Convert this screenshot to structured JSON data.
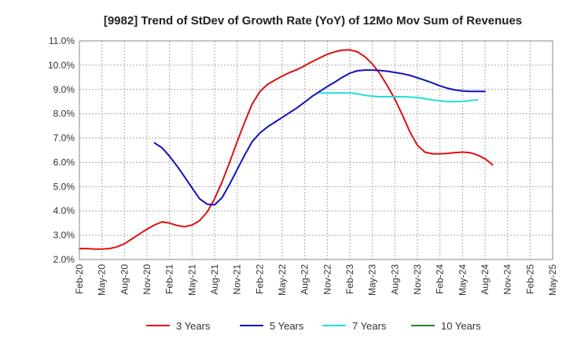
{
  "chart_data": {
    "type": "line",
    "title": "[9982]  Trend of StDev of Growth Rate (YoY) of 12Mo Mov Sum of Revenues",
    "xlabel": "",
    "ylabel": "",
    "ylim": [
      2.0,
      11.0
    ],
    "y_ticks": [
      "2.0%",
      "3.0%",
      "4.0%",
      "5.0%",
      "6.0%",
      "7.0%",
      "8.0%",
      "9.0%",
      "10.0%",
      "11.0%"
    ],
    "x_ticks": [
      "Feb-20",
      "May-20",
      "Aug-20",
      "Nov-20",
      "Feb-21",
      "May-21",
      "Aug-21",
      "Nov-21",
      "Feb-22",
      "May-22",
      "Aug-22",
      "Nov-22",
      "Feb-23",
      "May-23",
      "Aug-23",
      "Nov-23",
      "Feb-24",
      "May-24",
      "Aug-24",
      "Nov-24",
      "Feb-25",
      "May-25"
    ],
    "grid": true,
    "legend_position": "bottom",
    "series": [
      {
        "name": "3 Years",
        "color": "#dd1111",
        "points": [
          [
            0,
            2.45
          ],
          [
            1,
            2.45
          ],
          [
            2,
            2.43
          ],
          [
            3,
            2.43
          ],
          [
            4,
            2.45
          ],
          [
            5,
            2.52
          ],
          [
            6,
            2.65
          ],
          [
            7,
            2.85
          ],
          [
            8,
            3.05
          ],
          [
            9,
            3.25
          ],
          [
            10,
            3.42
          ],
          [
            11,
            3.55
          ],
          [
            12,
            3.5
          ],
          [
            13,
            3.4
          ],
          [
            14,
            3.35
          ],
          [
            15,
            3.42
          ],
          [
            16,
            3.6
          ],
          [
            17,
            3.95
          ],
          [
            18,
            4.5
          ],
          [
            19,
            5.2
          ],
          [
            20,
            6.0
          ],
          [
            21,
            6.85
          ],
          [
            22,
            7.65
          ],
          [
            23,
            8.4
          ],
          [
            24,
            8.9
          ],
          [
            25,
            9.2
          ],
          [
            26,
            9.38
          ],
          [
            27,
            9.55
          ],
          [
            28,
            9.7
          ],
          [
            29,
            9.82
          ],
          [
            30,
            9.98
          ],
          [
            31,
            10.15
          ],
          [
            32,
            10.3
          ],
          [
            33,
            10.45
          ],
          [
            34,
            10.55
          ],
          [
            35,
            10.62
          ],
          [
            36,
            10.63
          ],
          [
            37,
            10.55
          ],
          [
            38,
            10.35
          ],
          [
            39,
            10.05
          ],
          [
            40,
            9.65
          ],
          [
            41,
            9.15
          ],
          [
            42,
            8.6
          ],
          [
            43,
            7.95
          ],
          [
            44,
            7.25
          ],
          [
            45,
            6.7
          ],
          [
            46,
            6.42
          ],
          [
            47,
            6.35
          ],
          [
            48,
            6.35
          ],
          [
            49,
            6.37
          ],
          [
            50,
            6.4
          ],
          [
            51,
            6.42
          ],
          [
            52,
            6.4
          ],
          [
            53,
            6.3
          ],
          [
            54,
            6.15
          ],
          [
            55,
            5.9
          ]
        ]
      },
      {
        "name": "5 Years",
        "color": "#1111bb",
        "points": [
          [
            10,
            6.8
          ],
          [
            11,
            6.6
          ],
          [
            12,
            6.25
          ],
          [
            13,
            5.85
          ],
          [
            14,
            5.4
          ],
          [
            15,
            4.95
          ],
          [
            16,
            4.5
          ],
          [
            17,
            4.28
          ],
          [
            18,
            4.25
          ],
          [
            19,
            4.55
          ],
          [
            20,
            5.1
          ],
          [
            21,
            5.7
          ],
          [
            22,
            6.3
          ],
          [
            23,
            6.85
          ],
          [
            24,
            7.2
          ],
          [
            25,
            7.45
          ],
          [
            26,
            7.65
          ],
          [
            27,
            7.85
          ],
          [
            28,
            8.05
          ],
          [
            29,
            8.25
          ],
          [
            30,
            8.48
          ],
          [
            31,
            8.72
          ],
          [
            32,
            8.92
          ],
          [
            33,
            9.12
          ],
          [
            34,
            9.3
          ],
          [
            35,
            9.5
          ],
          [
            36,
            9.67
          ],
          [
            37,
            9.77
          ],
          [
            38,
            9.8
          ],
          [
            39,
            9.8
          ],
          [
            40,
            9.78
          ],
          [
            41,
            9.75
          ],
          [
            42,
            9.7
          ],
          [
            43,
            9.65
          ],
          [
            44,
            9.58
          ],
          [
            45,
            9.48
          ],
          [
            46,
            9.38
          ],
          [
            47,
            9.27
          ],
          [
            48,
            9.15
          ],
          [
            49,
            9.05
          ],
          [
            50,
            8.98
          ],
          [
            51,
            8.94
          ],
          [
            52,
            8.92
          ],
          [
            53,
            8.92
          ],
          [
            54,
            8.92
          ]
        ]
      },
      {
        "name": "7 Years",
        "color": "#22dddd",
        "points": [
          [
            32,
            8.85
          ],
          [
            33,
            8.85
          ],
          [
            34,
            8.86
          ],
          [
            35,
            8.86
          ],
          [
            36,
            8.86
          ],
          [
            37,
            8.82
          ],
          [
            38,
            8.76
          ],
          [
            39,
            8.72
          ],
          [
            40,
            8.7
          ],
          [
            41,
            8.7
          ],
          [
            42,
            8.7
          ],
          [
            43,
            8.7
          ],
          [
            44,
            8.69
          ],
          [
            45,
            8.67
          ],
          [
            46,
            8.62
          ],
          [
            47,
            8.57
          ],
          [
            48,
            8.53
          ],
          [
            49,
            8.5
          ],
          [
            50,
            8.5
          ],
          [
            51,
            8.51
          ],
          [
            52,
            8.54
          ],
          [
            53,
            8.57
          ]
        ]
      },
      {
        "name": "10 Years",
        "color": "#228822",
        "points": []
      }
    ]
  }
}
